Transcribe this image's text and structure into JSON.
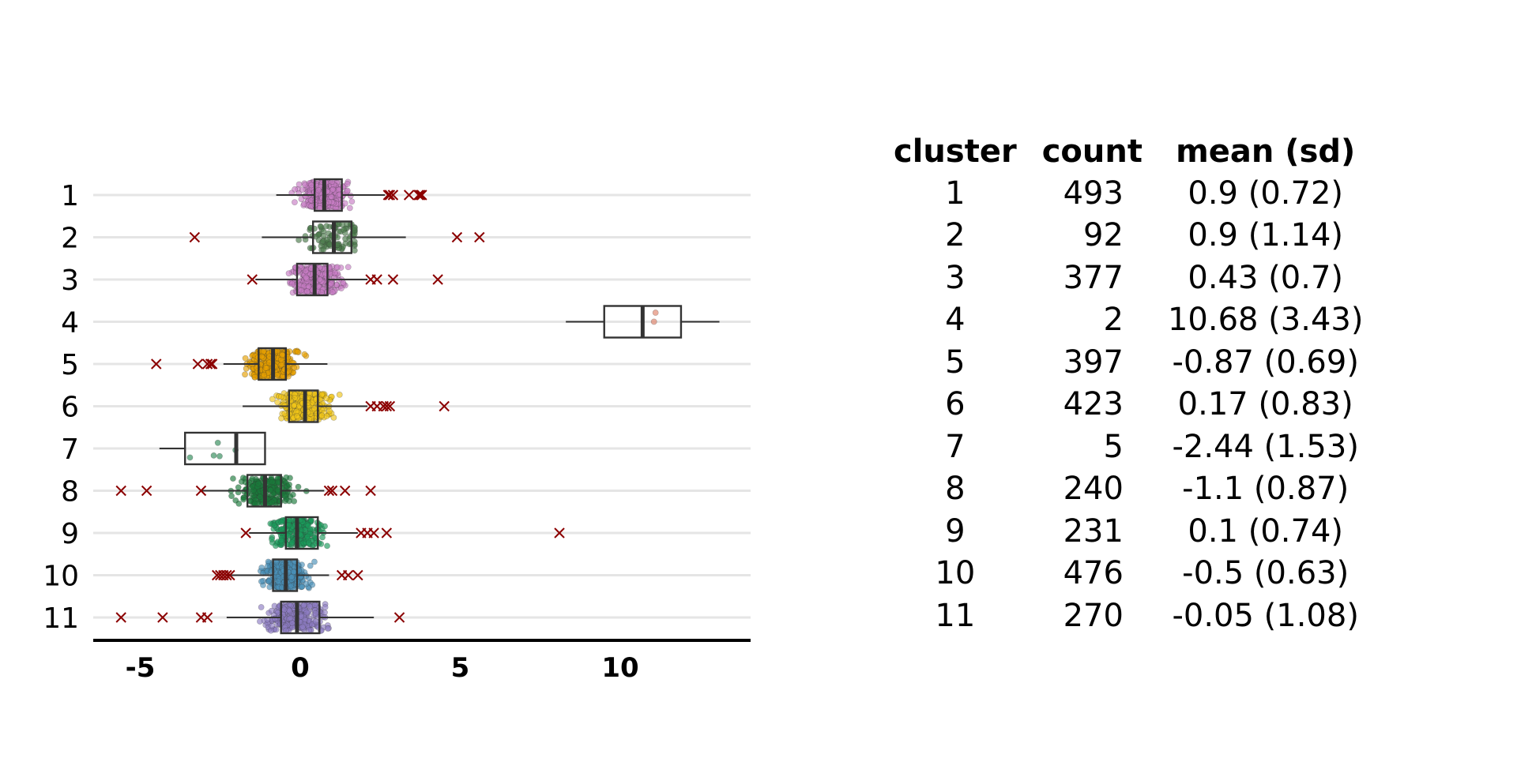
{
  "chart_data": {
    "type": "boxplot",
    "orientation": "horizontal",
    "xlim": [
      -6.5,
      14
    ],
    "x_ticks": [
      -5,
      0,
      5,
      10
    ],
    "x_tick_labels": [
      "-5",
      "0",
      "5",
      "10"
    ],
    "grid": "horizontal lines at each category",
    "outlier_marker": "x",
    "outlier_color": "#8b0000",
    "categories": [
      "1",
      "2",
      "3",
      "4",
      "5",
      "6",
      "7",
      "8",
      "9",
      "10",
      "11"
    ],
    "series": [
      {
        "category": "1",
        "color": "#c77cc4",
        "jitter_range": [
          -0.8,
          3.6
        ],
        "points": 493,
        "box": {
          "whisker_low": -0.75,
          "q1": 0.45,
          "median": 0.75,
          "q3": 1.3,
          "whisker_high": 2.65
        },
        "outliers": [
          2.75,
          2.8,
          2.9,
          3.4,
          3.7,
          3.8,
          3.75
        ]
      },
      {
        "category": "2",
        "color": "#4a7a4a",
        "jitter_range": [
          -1.2,
          1.7
        ],
        "points": 92,
        "box": {
          "whisker_low": -1.2,
          "q1": 0.4,
          "median": 1.05,
          "q3": 1.6,
          "whisker_high": 3.3
        },
        "outliers": [
          -3.3,
          4.9,
          5.6
        ]
      },
      {
        "category": "3",
        "color": "#c77cc4",
        "jitter_range": [
          -1.5,
          2.0
        ],
        "points": 377,
        "box": {
          "whisker_low": -1.4,
          "q1": -0.1,
          "median": 0.45,
          "q3": 0.85,
          "whisker_high": 2.1
        },
        "outliers": [
          -1.5,
          2.2,
          2.4,
          2.9,
          4.3
        ]
      },
      {
        "category": "4",
        "color": "#e0836a",
        "jitter_range": [
          8.3,
          13.1
        ],
        "points": 2,
        "box": {
          "whisker_low": 8.3,
          "q1": 9.5,
          "median": 10.7,
          "q3": 11.9,
          "whisker_high": 13.1
        },
        "outliers": []
      },
      {
        "category": "5",
        "color": "#e69f00",
        "jitter_range": [
          -2.4,
          0.8
        ],
        "points": 397,
        "box": {
          "whisker_low": -2.4,
          "q1": -1.3,
          "median": -0.85,
          "q3": -0.45,
          "whisker_high": 0.85
        },
        "outliers": [
          -4.5,
          -3.2,
          -2.9,
          -2.8,
          -2.75
        ]
      },
      {
        "category": "6",
        "color": "#f0c419",
        "jitter_range": [
          -1.8,
          2.8
        ],
        "points": 423,
        "box": {
          "whisker_low": -1.8,
          "q1": -0.35,
          "median": 0.15,
          "q3": 0.55,
          "whisker_high": 2.1
        },
        "outliers": [
          2.2,
          2.4,
          2.6,
          2.7,
          2.8,
          4.5
        ]
      },
      {
        "category": "7",
        "color": "#2e8b57",
        "jitter_range": [
          -4.4,
          -1.1
        ],
        "points": 5,
        "box": {
          "whisker_low": -4.4,
          "q1": -3.6,
          "median": -2.0,
          "q3": -1.1,
          "whisker_high": -1.1
        },
        "outliers": []
      },
      {
        "category": "8",
        "color": "#1a7a3a",
        "jitter_range": [
          -2.8,
          1.0
        ],
        "points": 240,
        "box": {
          "whisker_low": -3.1,
          "q1": -1.65,
          "median": -1.1,
          "q3": -0.6,
          "whisker_high": 0.75
        },
        "outliers": [
          -5.6,
          -4.8,
          -3.1,
          0.9,
          1.0,
          1.4,
          2.2
        ]
      },
      {
        "category": "9",
        "color": "#1a9a5a",
        "jitter_range": [
          -1.4,
          2.4
        ],
        "points": 231,
        "box": {
          "whisker_low": -1.6,
          "q1": -0.45,
          "median": -0.1,
          "q3": 0.55,
          "whisker_high": 1.8
        },
        "outliers": [
          -1.7,
          1.9,
          2.1,
          2.3,
          2.7,
          8.1
        ]
      },
      {
        "category": "10",
        "color": "#4a90b8",
        "jitter_range": [
          -2.2,
          1.0
        ],
        "points": 476,
        "box": {
          "whisker_low": -2.3,
          "q1": -0.85,
          "median": -0.45,
          "q3": -0.1,
          "whisker_high": 0.9
        },
        "outliers": [
          -2.6,
          -2.5,
          -2.4,
          -2.3,
          -2.2,
          1.3,
          1.5,
          1.8
        ]
      },
      {
        "category": "11",
        "color": "#8e7cc3",
        "jitter_range": [
          -2.3,
          3.1
        ],
        "points": 270,
        "box": {
          "whisker_low": -2.3,
          "q1": -0.6,
          "median": -0.1,
          "q3": 0.6,
          "whisker_high": 2.3
        },
        "outliers": [
          -5.6,
          -4.3,
          -3.1,
          -2.9,
          3.1
        ]
      }
    ]
  },
  "table": {
    "headers": [
      "cluster",
      "count",
      "mean (sd)"
    ],
    "rows": [
      [
        "1",
        "493",
        "0.9 (0.72)"
      ],
      [
        "2",
        "92",
        "0.9 (1.14)"
      ],
      [
        "3",
        "377",
        "0.43 (0.7)"
      ],
      [
        "4",
        "2",
        "10.68 (3.43)"
      ],
      [
        "5",
        "397",
        "-0.87 (0.69)"
      ],
      [
        "6",
        "423",
        "0.17 (0.83)"
      ],
      [
        "7",
        "5",
        "-2.44 (1.53)"
      ],
      [
        "8",
        "240",
        "-1.1 (0.87)"
      ],
      [
        "9",
        "231",
        "0.1 (0.74)"
      ],
      [
        "10",
        "476",
        "-0.5 (0.63)"
      ],
      [
        "11",
        "270",
        "-0.05 (1.08)"
      ]
    ]
  }
}
